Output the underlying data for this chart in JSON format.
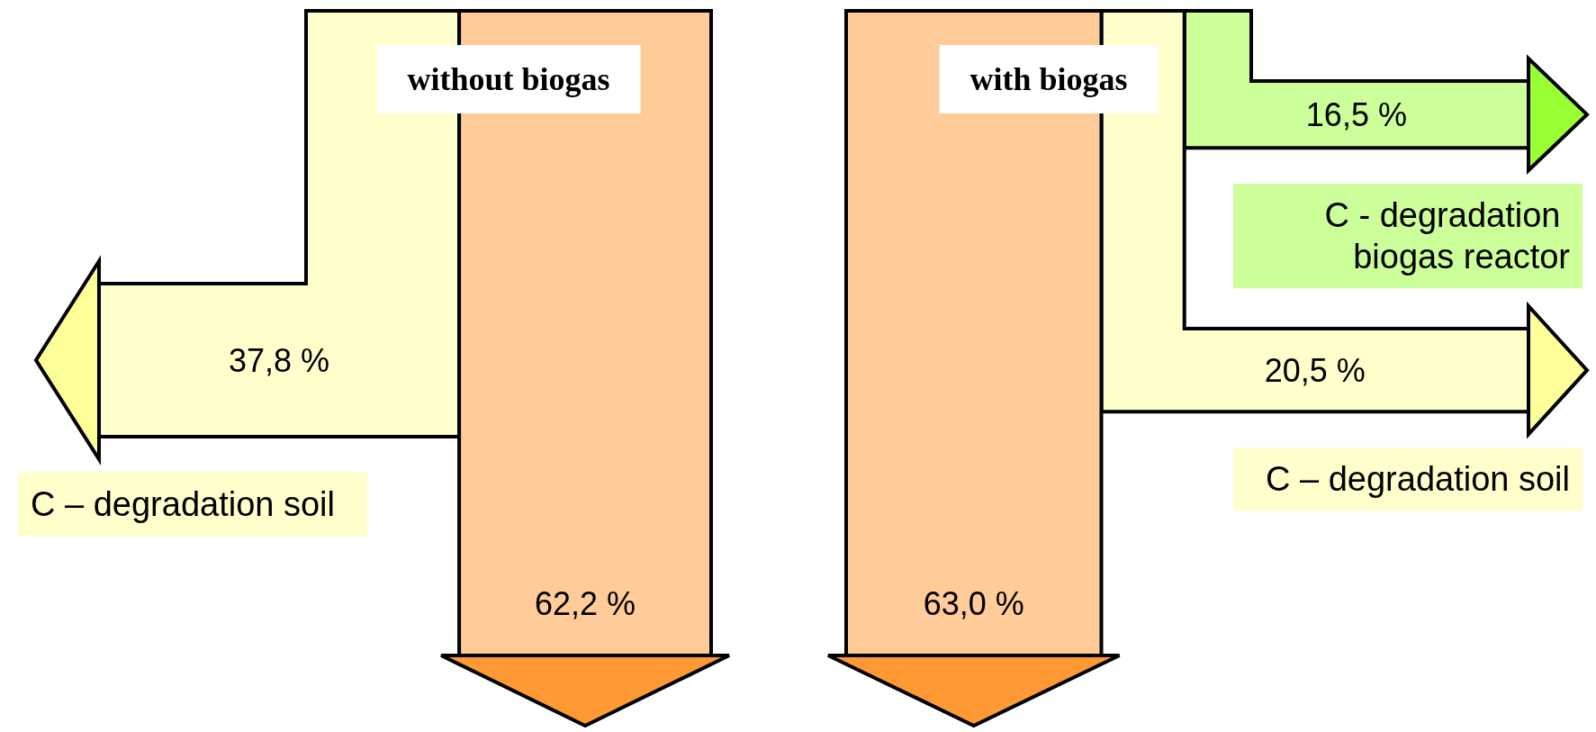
{
  "chart_data": [
    {
      "type": "other",
      "title": "without biogas",
      "categories": [
        "C – degradation soil",
        null
      ],
      "values": [
        37.8,
        62.2
      ],
      "value_labels": [
        "37,8 %",
        "62,2 %"
      ],
      "colors": [
        "#ffffcc",
        "#ffcc99"
      ]
    },
    {
      "type": "other",
      "title": "with biogas",
      "categories": [
        "C - degradation biogas reactor",
        "C – degradation soil",
        null
      ],
      "values": [
        16.5,
        20.5,
        63.0
      ],
      "value_labels": [
        "16,5 %",
        "20,5 %",
        "63,0 %"
      ],
      "colors": [
        "#ccff99",
        "#ffffcc",
        "#ffcc99"
      ]
    }
  ]
}
